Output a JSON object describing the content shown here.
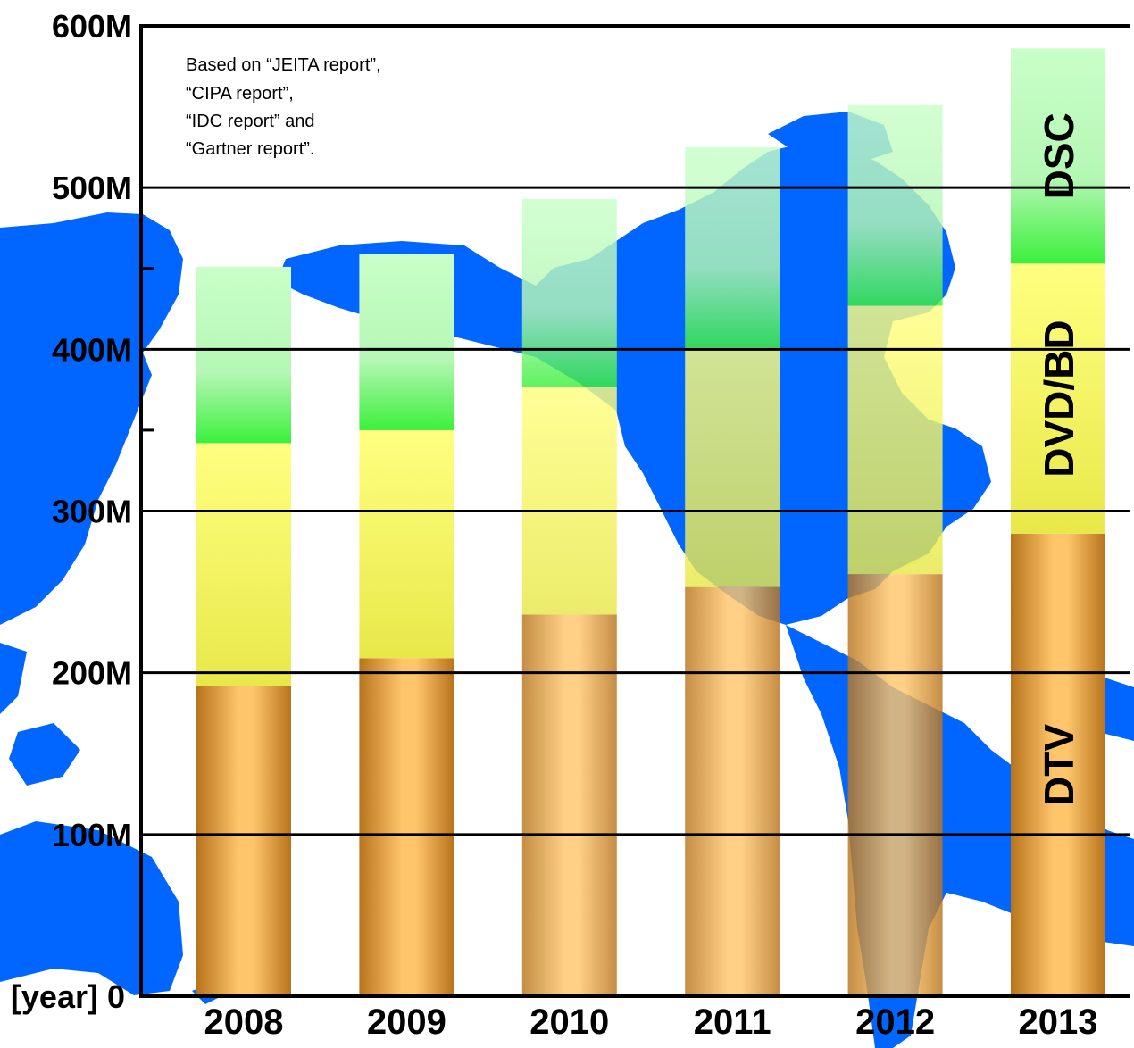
{
  "chart_data": {
    "type": "bar",
    "stacked": true,
    "categories": [
      "2008",
      "2009",
      "2010",
      "2011",
      "2012",
      "2013"
    ],
    "series": [
      {
        "name": "DTV",
        "values": [
          192,
          209,
          236,
          253,
          261,
          286
        ],
        "color": "#f3a94e"
      },
      {
        "name": "DVD/BD",
        "values": [
          150,
          141,
          141,
          148,
          166,
          167
        ],
        "color": "#ffff70"
      },
      {
        "name": "DSC",
        "values": [
          109,
          109,
          116,
          124,
          124,
          133
        ],
        "color": "#5cf35c"
      }
    ],
    "ylim": [
      0,
      600
    ],
    "yticks": [
      {
        "value": 0,
        "label": "[year] 0"
      },
      {
        "value": 100,
        "label": "100M"
      },
      {
        "value": 200,
        "label": "200M"
      },
      {
        "value": 300,
        "label": "300M"
      },
      {
        "value": 400,
        "label": "400M"
      },
      {
        "value": 500,
        "label": "500M"
      },
      {
        "value": 600,
        "label": "600M"
      }
    ],
    "grid": true,
    "note": [
      "Based on “JEITA report”,",
      "“CIPA report”,",
      "“IDC report” and",
      "“Gartner report”."
    ],
    "background_color": "#0066ff"
  }
}
